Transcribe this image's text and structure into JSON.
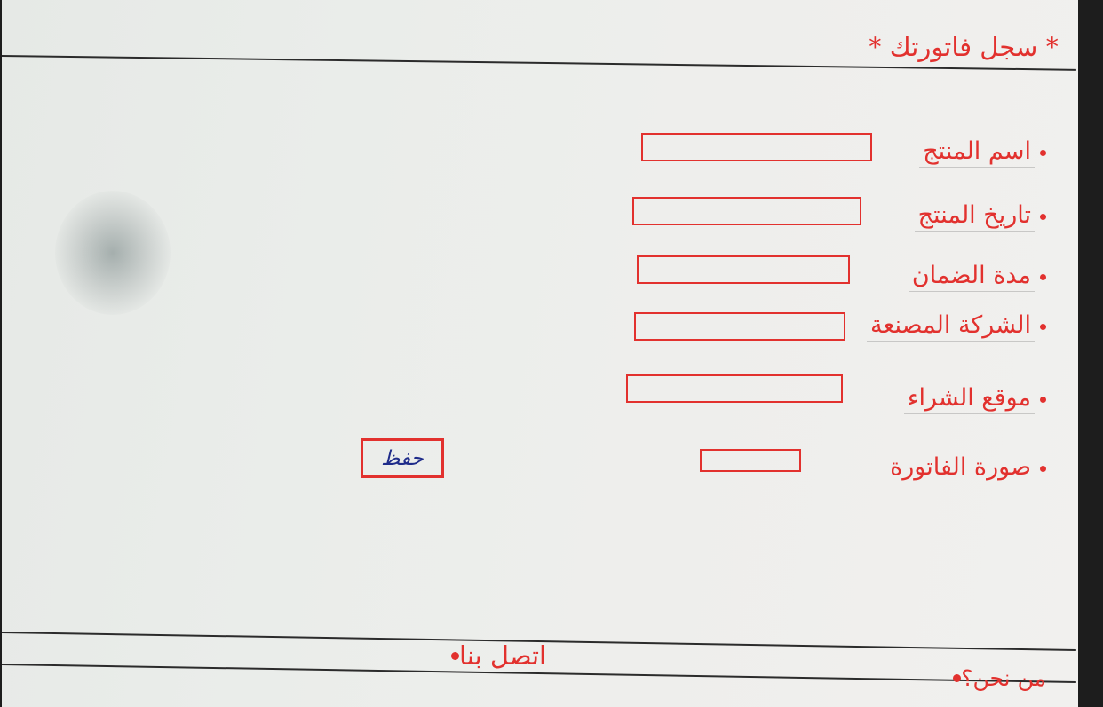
{
  "header": {
    "title": "* سجل فاتورتك *"
  },
  "form": {
    "fields": [
      {
        "label": "اسم المنتج"
      },
      {
        "label": "تاريخ المنتج"
      },
      {
        "label": "مدة الضمان"
      },
      {
        "label": "الشركة المصنعة"
      },
      {
        "label": "موقع الشراء"
      },
      {
        "label": "صورة الفاتورة"
      }
    ],
    "save_label": "حفظ"
  },
  "footer": {
    "contact_label": "اتصل بنا",
    "about_label": "من نحن؟"
  },
  "colors": {
    "ink_red": "#e2312e",
    "ink_blue": "#1f2c8a",
    "rule": "#2b2b2b"
  }
}
